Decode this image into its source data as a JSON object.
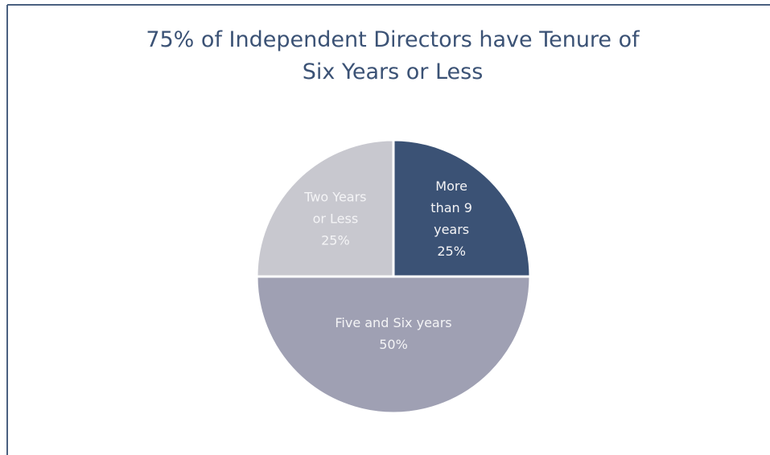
{
  "chart_data": {
    "type": "pie",
    "title": "75% of Independent Directors have Tenure of Six Years or Less",
    "categories": [
      "More than 9 years",
      "Five and Six years",
      "Two Years or Less"
    ],
    "values": [
      25,
      50,
      25
    ],
    "value_labels": [
      "25%",
      "50%",
      "25%"
    ],
    "colors": [
      "#3b5275",
      "#9fa0b3",
      "#c8c8cf"
    ]
  }
}
